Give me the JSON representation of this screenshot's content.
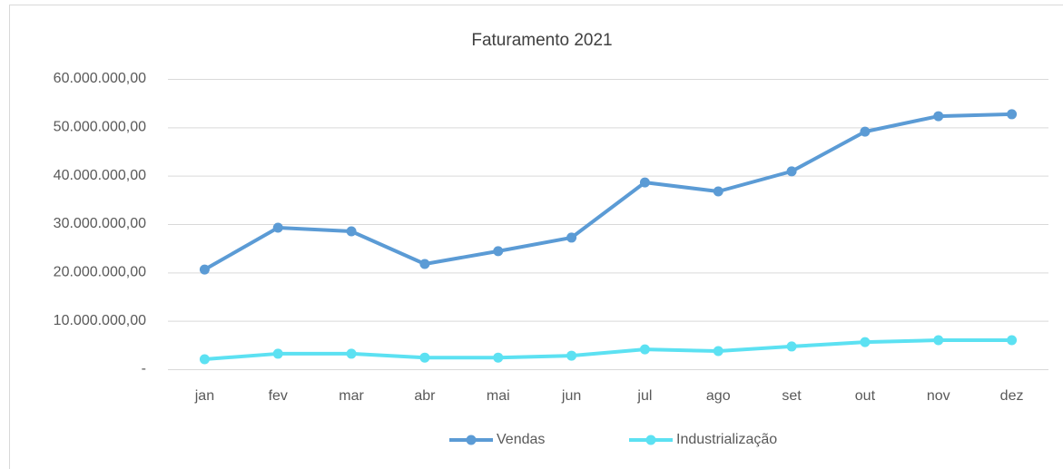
{
  "chart_data": {
    "type": "line",
    "title": "Faturamento 2021",
    "categories": [
      "jan",
      "fev",
      "mar",
      "abr",
      "mai",
      "jun",
      "jul",
      "ago",
      "set",
      "out",
      "nov",
      "dez"
    ],
    "series": [
      {
        "name": "Vendas",
        "color": "#5b9bd5",
        "values": [
          20600000,
          29250000,
          28500000,
          21750000,
          24400000,
          27200000,
          38600000,
          36750000,
          40900000,
          49100000,
          52300000,
          52700000
        ]
      },
      {
        "name": "Industrialização",
        "color": "#5ce1f2",
        "values": [
          2060000,
          3200000,
          3200000,
          2400000,
          2400000,
          2800000,
          4100000,
          3750000,
          4700000,
          5600000,
          6000000,
          6000000
        ]
      }
    ],
    "ylim": [
      0,
      60000000
    ],
    "yticks": [
      {
        "value": 0,
        "label": "-"
      },
      {
        "value": 10000000,
        "label": "10.000.000,00"
      },
      {
        "value": 20000000,
        "label": "20.000.000,00"
      },
      {
        "value": 30000000,
        "label": "30.000.000,00"
      },
      {
        "value": 40000000,
        "label": "40.000.000,00"
      },
      {
        "value": 50000000,
        "label": "50.000.000,00"
      },
      {
        "value": 60000000,
        "label": "60.000.000,00"
      }
    ],
    "grid": true,
    "legend": "bottom"
  }
}
